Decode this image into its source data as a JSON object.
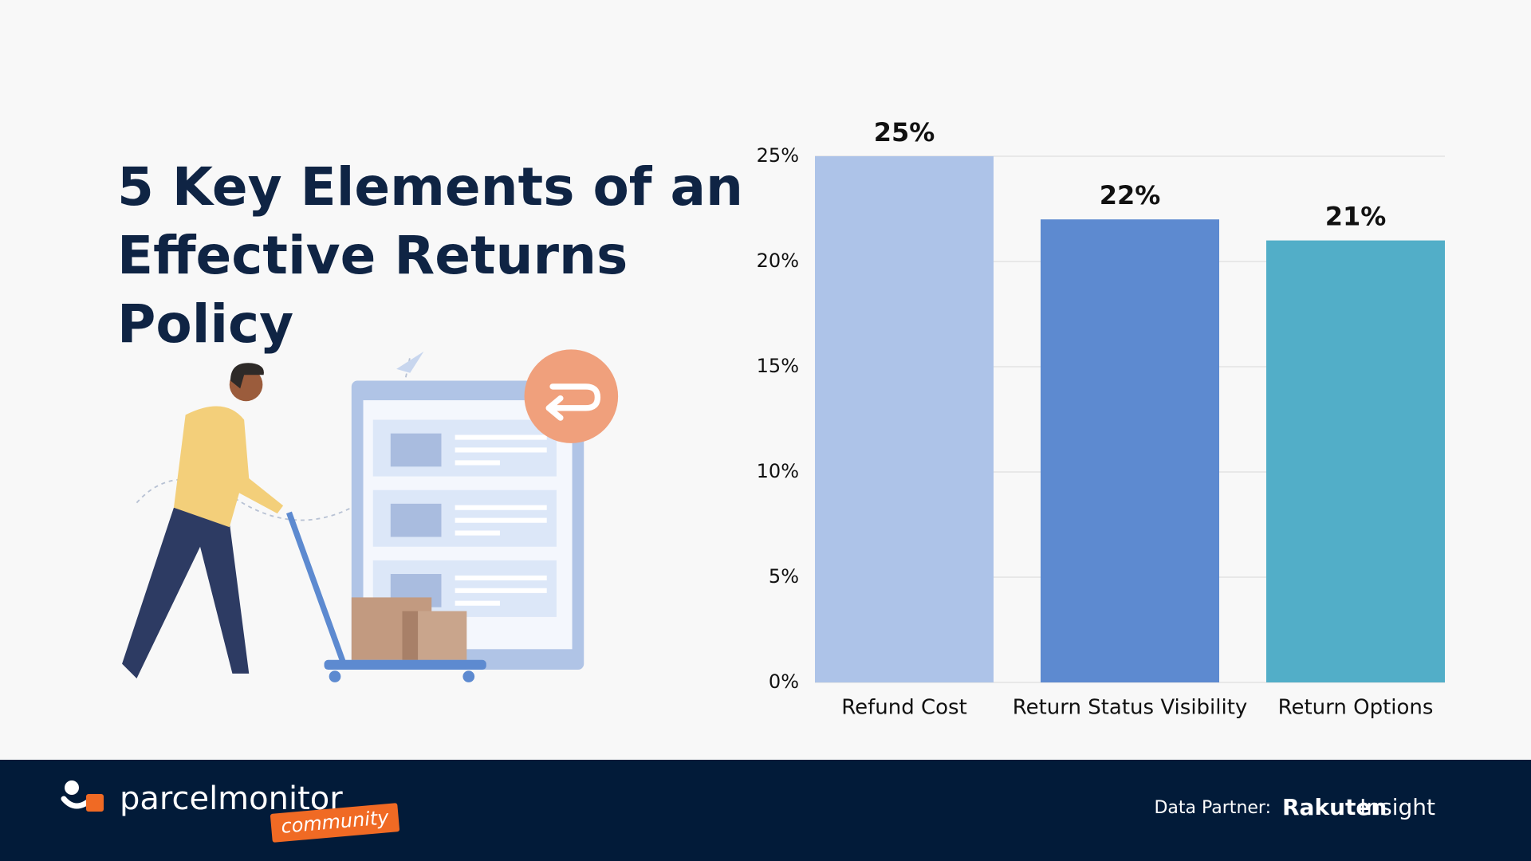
{
  "title": "5 Key Elements of an Effective Returns Policy",
  "chart_data": {
    "type": "bar",
    "categories": [
      "Refund Cost",
      "Return Status Visibility",
      "Return Options"
    ],
    "values": [
      25,
      22,
      21
    ],
    "value_labels": [
      "25%",
      "22%",
      "21%"
    ],
    "colors": [
      "#adc3e8",
      "#5d8ad0",
      "#52aec8"
    ],
    "ylim": [
      0,
      25
    ],
    "yticks": [
      {
        "value": 0,
        "label": "0%"
      },
      {
        "value": 5,
        "label": "5%"
      },
      {
        "value": 10,
        "label": "10%"
      },
      {
        "value": 15,
        "label": "15%"
      },
      {
        "value": 20,
        "label": "20%"
      },
      {
        "value": 25,
        "label": "25%"
      }
    ],
    "grid": true
  },
  "footer": {
    "brand": "parcelmonitor",
    "tag": "community",
    "partner_label": "Data Partner:",
    "partner_name": "Rakuten",
    "partner_sub": "Insight"
  }
}
